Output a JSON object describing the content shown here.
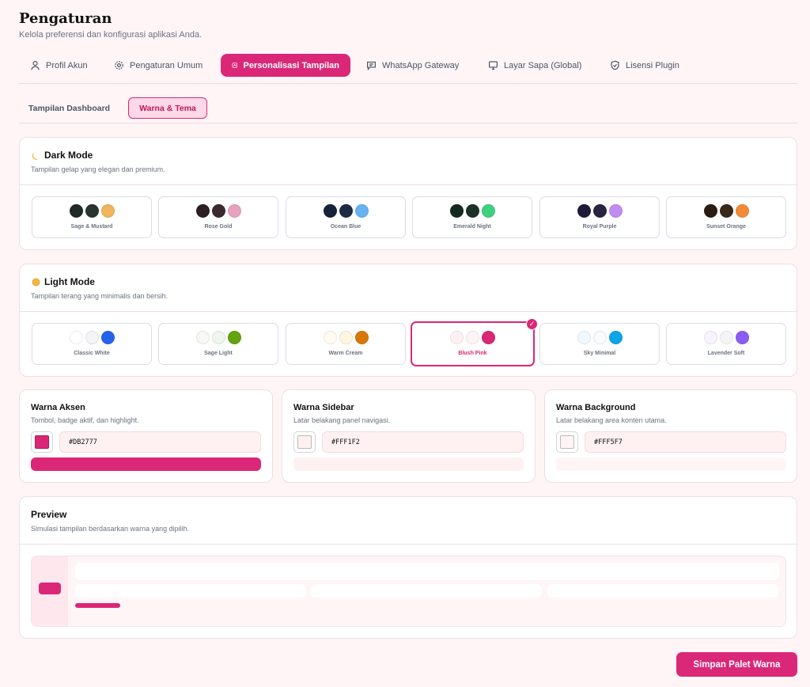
{
  "header": {
    "title": "Pengaturan",
    "subtitle": "Kelola preferensi dan konfigurasi aplikasi Anda."
  },
  "tabs": [
    {
      "label": "Profil Akun",
      "icon": "user-icon"
    },
    {
      "label": "Pengaturan Umum",
      "icon": "gear-icon"
    },
    {
      "label": "Personalisasi Tampilan",
      "icon": "palette-icon",
      "active": true
    },
    {
      "label": "WhatsApp Gateway",
      "icon": "chat-icon"
    },
    {
      "label": "Layar Sapa (Global)",
      "icon": "monitor-icon"
    },
    {
      "label": "Lisensi Plugin",
      "icon": "shield-icon"
    }
  ],
  "subtabs": [
    {
      "label": "Tampilan Dashboard"
    },
    {
      "label": "Warna & Tema",
      "active": true
    }
  ],
  "dark_mode": {
    "icon": "moon-icon",
    "title": "Dark Mode",
    "description": "Tampilan gelap yang elegan dan premium.",
    "themes": [
      {
        "name": "Sage & Mustard",
        "colors": [
          "#1F2A24",
          "#2B3530",
          "#F0B45C"
        ]
      },
      {
        "name": "Rose Gold",
        "colors": [
          "#2A1F24",
          "#3A2A30",
          "#E8A2BD"
        ]
      },
      {
        "name": "Ocean Blue",
        "colors": [
          "#16213A",
          "#1E2A44",
          "#66B3F2"
        ]
      },
      {
        "name": "Emerald Night",
        "colors": [
          "#152A1F",
          "#1C3226",
          "#3FD07F"
        ]
      },
      {
        "name": "Royal Purple",
        "colors": [
          "#1E1A38",
          "#2A2442",
          "#C08CF2"
        ]
      },
      {
        "name": "Sunset Orange",
        "colors": [
          "#2A1C12",
          "#3A2818",
          "#F28A38"
        ]
      }
    ]
  },
  "light_mode": {
    "icon": "sun-icon",
    "title": "Light Mode",
    "description": "Tampilan terang yang minimalis dan bersih.",
    "themes": [
      {
        "name": "Classic White",
        "colors": [
          "#FFFFFF",
          "#F3F4F6",
          "#2563EB"
        ]
      },
      {
        "name": "Sage Light",
        "colors": [
          "#F6F8F5",
          "#EEF6EE",
          "#65A30D"
        ]
      },
      {
        "name": "Warm Cream",
        "colors": [
          "#FFFBF0",
          "#FFF6E0",
          "#D97706"
        ]
      },
      {
        "name": "Blush Pink",
        "colors": [
          "#FFF1F2",
          "#FFF5F7",
          "#DB2777"
        ],
        "selected": true
      },
      {
        "name": "Sky Minimal",
        "colors": [
          "#F0F9FF",
          "#F8FAFC",
          "#0EA5E9"
        ]
      },
      {
        "name": "Lavender Soft",
        "colors": [
          "#F7F3FF",
          "#F5F5F7",
          "#8B5CF6"
        ]
      }
    ]
  },
  "color_settings": [
    {
      "title": "Warna Aksen",
      "description": "Tombol, badge aktif, dan highlight.",
      "value": "#DB2777",
      "bar_color": "#DB2777"
    },
    {
      "title": "Warna Sidebar",
      "description": "Latar belakang panel navigasi.",
      "value": "#FFF1F2",
      "bar_color": "#FFF1F2"
    },
    {
      "title": "Warna Background",
      "description": "Latar belakang area konten utama.",
      "value": "#FFF5F7",
      "bar_color": "#FFF5F7"
    }
  ],
  "preview": {
    "title": "Preview",
    "description": "Simulasi tampilan berdasarkan warna yang dipilih."
  },
  "save_button": {
    "label": "Simpan Palet Warna"
  }
}
